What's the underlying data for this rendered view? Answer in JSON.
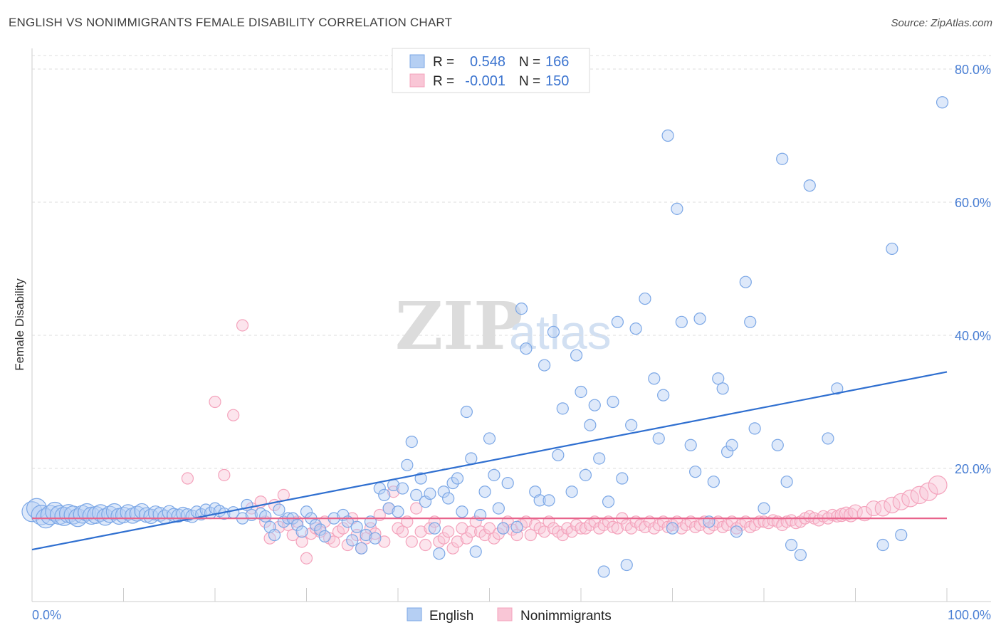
{
  "chart_data": {
    "type": "scatter",
    "title": "ENGLISH VS NONIMMIGRANTS FEMALE DISABILITY CORRELATION CHART",
    "source": "Source: ZipAtlas.com",
    "ylabel": "Female Disability",
    "xlim": [
      0,
      100
    ],
    "ylim": [
      0,
      80
    ],
    "x_tick_labels": [
      "0.0%",
      "100.0%"
    ],
    "y_ticks": [
      20,
      40,
      60,
      80
    ],
    "y_tick_labels": [
      "20.0%",
      "40.0%",
      "60.0%",
      "80.0%"
    ],
    "grid": "horizontal dashed",
    "watermark": {
      "zip": "ZIP",
      "atlas": "atlas"
    },
    "legend_top": {
      "r_label": "R =",
      "n_label": "N =",
      "entries": [
        {
          "series": "English",
          "r": "0.548",
          "n": "166"
        },
        {
          "series": "Nonimmigrants",
          "r": "-0.001",
          "n": "150"
        }
      ]
    },
    "series": [
      {
        "name": "English",
        "color": "#7ba7e6",
        "trend_color": "#2f6fd0",
        "trendline": {
          "x": [
            0,
            100
          ],
          "y": [
            7.8,
            34.5
          ]
        },
        "points": [
          [
            0,
            13.5
          ],
          [
            0.5,
            14
          ],
          [
            1,
            13
          ],
          [
            1.5,
            12.5
          ],
          [
            2,
            13
          ],
          [
            2.5,
            13.5
          ],
          [
            3,
            13
          ],
          [
            3.5,
            12.8
          ],
          [
            4,
            13.2
          ],
          [
            4.5,
            13
          ],
          [
            5,
            12.6
          ],
          [
            5.5,
            13.1
          ],
          [
            6,
            13.4
          ],
          [
            6.5,
            12.9
          ],
          [
            7,
            13
          ],
          [
            7.5,
            13.3
          ],
          [
            8,
            12.7
          ],
          [
            8.5,
            13.1
          ],
          [
            9,
            13.5
          ],
          [
            9.5,
            12.8
          ],
          [
            10,
            13
          ],
          [
            10.5,
            13.4
          ],
          [
            11,
            12.9
          ],
          [
            11.5,
            13.2
          ],
          [
            12,
            13.6
          ],
          [
            12.5,
            13
          ],
          [
            13,
            12.8
          ],
          [
            13.5,
            13.3
          ],
          [
            14,
            13.1
          ],
          [
            14.5,
            12.7
          ],
          [
            15,
            13.4
          ],
          [
            15.5,
            13
          ],
          [
            16,
            12.9
          ],
          [
            16.5,
            13.2
          ],
          [
            17,
            13
          ],
          [
            17.5,
            12.8
          ],
          [
            18,
            13.5
          ],
          [
            18.5,
            13.1
          ],
          [
            19,
            13.8
          ],
          [
            19.5,
            13.3
          ],
          [
            20,
            14
          ],
          [
            20.5,
            13.6
          ],
          [
            21,
            13.2
          ],
          [
            22,
            13.4
          ],
          [
            23,
            12.5
          ],
          [
            23.5,
            14.5
          ],
          [
            24,
            13
          ],
          [
            25,
            13.2
          ],
          [
            25.5,
            12.8
          ],
          [
            26,
            11.2
          ],
          [
            26.5,
            10
          ],
          [
            27,
            13.8
          ],
          [
            27.5,
            12
          ],
          [
            28,
            12.5
          ],
          [
            28.5,
            12.5
          ],
          [
            29,
            11.5
          ],
          [
            29.5,
            10.5
          ],
          [
            30,
            13.5
          ],
          [
            30.5,
            12.5
          ],
          [
            31,
            11.5
          ],
          [
            31.5,
            10.8
          ],
          [
            32,
            9.8
          ],
          [
            33,
            12.5
          ],
          [
            34,
            13
          ],
          [
            34.5,
            12
          ],
          [
            35,
            9.2
          ],
          [
            35.5,
            11.2
          ],
          [
            36,
            8
          ],
          [
            36.5,
            10
          ],
          [
            37,
            12
          ],
          [
            37.5,
            9.5
          ],
          [
            38,
            17
          ],
          [
            38.5,
            16
          ],
          [
            39,
            14
          ],
          [
            39.5,
            17.5
          ],
          [
            40,
            13.5
          ],
          [
            40.5,
            17
          ],
          [
            41,
            20.5
          ],
          [
            41.5,
            24
          ],
          [
            42,
            16
          ],
          [
            42.5,
            18.5
          ],
          [
            43,
            15
          ],
          [
            43.5,
            16.2
          ],
          [
            44,
            11
          ],
          [
            44.5,
            7.2
          ],
          [
            45,
            16.5
          ],
          [
            45.5,
            15.5
          ],
          [
            46,
            17.8
          ],
          [
            46.5,
            18.5
          ],
          [
            47,
            13.5
          ],
          [
            47.5,
            28.5
          ],
          [
            48,
            21.5
          ],
          [
            48.5,
            7.5
          ],
          [
            49,
            13
          ],
          [
            49.5,
            16.5
          ],
          [
            50,
            24.5
          ],
          [
            50.5,
            19
          ],
          [
            51,
            14
          ],
          [
            51.5,
            11
          ],
          [
            52,
            17.8
          ],
          [
            53,
            11.2
          ],
          [
            53.5,
            44
          ],
          [
            54,
            38
          ],
          [
            55,
            16.5
          ],
          [
            55.5,
            15.2
          ],
          [
            56,
            35.5
          ],
          [
            56.5,
            15.2
          ],
          [
            57,
            40.5
          ],
          [
            57.5,
            22
          ],
          [
            58,
            29
          ],
          [
            59,
            16.5
          ],
          [
            59.5,
            37
          ],
          [
            60,
            31.5
          ],
          [
            60.5,
            19
          ],
          [
            61,
            26.5
          ],
          [
            61.5,
            29.5
          ],
          [
            62,
            21.5
          ],
          [
            62.5,
            4.5
          ],
          [
            63,
            15
          ],
          [
            63.5,
            30
          ],
          [
            64,
            42
          ],
          [
            64.5,
            18.5
          ],
          [
            65,
            5.5
          ],
          [
            65.5,
            26.5
          ],
          [
            66,
            41
          ],
          [
            67,
            45.5
          ],
          [
            68,
            33.5
          ],
          [
            68.5,
            24.5
          ],
          [
            69,
            31
          ],
          [
            69.5,
            70
          ],
          [
            70,
            11
          ],
          [
            70.5,
            59
          ],
          [
            71,
            42
          ],
          [
            72,
            23.5
          ],
          [
            72.5,
            19.5
          ],
          [
            73,
            42.5
          ],
          [
            74,
            12
          ],
          [
            74.5,
            18
          ],
          [
            75,
            33.5
          ],
          [
            75.5,
            32
          ],
          [
            76,
            22.5
          ],
          [
            76.5,
            23.5
          ],
          [
            77,
            10.5
          ],
          [
            78,
            48
          ],
          [
            78.5,
            42
          ],
          [
            79,
            26
          ],
          [
            80,
            14
          ],
          [
            81.5,
            23.5
          ],
          [
            82,
            66.5
          ],
          [
            82.5,
            18
          ],
          [
            83,
            8.5
          ],
          [
            84,
            7
          ],
          [
            85,
            62.5
          ],
          [
            87,
            24.5
          ],
          [
            88,
            32
          ],
          [
            93,
            8.5
          ],
          [
            94,
            53
          ],
          [
            95,
            10
          ],
          [
            99.5,
            75
          ]
        ]
      },
      {
        "name": "Nonimmigrants",
        "color": "#f4a3bc",
        "trend_color": "#e8648c",
        "trendline": {
          "x": [
            0,
            100
          ],
          "y": [
            12.5,
            12.5
          ]
        },
        "points": [
          [
            17,
            18.5
          ],
          [
            20,
            30
          ],
          [
            21,
            19
          ],
          [
            22,
            28
          ],
          [
            23,
            41.5
          ],
          [
            24,
            14
          ],
          [
            25,
            15
          ],
          [
            25.5,
            12
          ],
          [
            26,
            9.5
          ],
          [
            26.5,
            14.5
          ],
          [
            27,
            11.2
          ],
          [
            27.5,
            16
          ],
          [
            28,
            11.5
          ],
          [
            28.5,
            10
          ],
          [
            29,
            12
          ],
          [
            29.5,
            9
          ],
          [
            30,
            6.5
          ],
          [
            30.5,
            10.2
          ],
          [
            31,
            11
          ],
          [
            31.5,
            10.5
          ],
          [
            32,
            12
          ],
          [
            32.5,
            9.5
          ],
          [
            33,
            9
          ],
          [
            33.5,
            10.5
          ],
          [
            34,
            11
          ],
          [
            34.5,
            8.5
          ],
          [
            35,
            12.5
          ],
          [
            35.5,
            10
          ],
          [
            36,
            8
          ],
          [
            36.5,
            9.5
          ],
          [
            37,
            11
          ],
          [
            37.5,
            10.2
          ],
          [
            38,
            13
          ],
          [
            38.5,
            9
          ],
          [
            39,
            14
          ],
          [
            39.5,
            16.5
          ],
          [
            40,
            11
          ],
          [
            40.5,
            10.5
          ],
          [
            41,
            12
          ],
          [
            41.5,
            9
          ],
          [
            42,
            14
          ],
          [
            42.5,
            10.5
          ],
          [
            43,
            8.5
          ],
          [
            43.5,
            11
          ],
          [
            44,
            12
          ],
          [
            44.5,
            9
          ],
          [
            45,
            9.5
          ],
          [
            45.5,
            10.5
          ],
          [
            46,
            8
          ],
          [
            46.5,
            9
          ],
          [
            47,
            11
          ],
          [
            47.5,
            9.5
          ],
          [
            48,
            10.5
          ],
          [
            48.5,
            12
          ],
          [
            49,
            10.5
          ],
          [
            49.5,
            10
          ],
          [
            50,
            11
          ],
          [
            50.5,
            9.5
          ],
          [
            51,
            10.2
          ],
          [
            51.5,
            11
          ],
          [
            52,
            12
          ],
          [
            52.5,
            10.8
          ],
          [
            53,
            10
          ],
          [
            53.5,
            11.5
          ],
          [
            54,
            12
          ],
          [
            54.5,
            10
          ],
          [
            55,
            11.5
          ],
          [
            55.5,
            11
          ],
          [
            56,
            10.5
          ],
          [
            56.5,
            12
          ],
          [
            57,
            11
          ],
          [
            57.5,
            10.5
          ],
          [
            58,
            10
          ],
          [
            58.5,
            11
          ],
          [
            59,
            10.5
          ],
          [
            59.5,
            11.5
          ],
          [
            60,
            11
          ],
          [
            60.5,
            11
          ],
          [
            61,
            11.5
          ],
          [
            61.5,
            12
          ],
          [
            62,
            11
          ],
          [
            62.5,
            11.5
          ],
          [
            63,
            12
          ],
          [
            63.5,
            11.2
          ],
          [
            64,
            11
          ],
          [
            64.5,
            12.5
          ],
          [
            65,
            11.5
          ],
          [
            65.5,
            11
          ],
          [
            66,
            12
          ],
          [
            66.5,
            11.5
          ],
          [
            67,
            11.2
          ],
          [
            67.5,
            12
          ],
          [
            68,
            11
          ],
          [
            68.5,
            11.5
          ],
          [
            69,
            12
          ],
          [
            69.5,
            11.2
          ],
          [
            70,
            11.5
          ],
          [
            70.5,
            12
          ],
          [
            71,
            11
          ],
          [
            71.5,
            11.5
          ],
          [
            72,
            12
          ],
          [
            72.5,
            11.2
          ],
          [
            73,
            11.5
          ],
          [
            73.5,
            12
          ],
          [
            74,
            11
          ],
          [
            74.5,
            11.5
          ],
          [
            75,
            12
          ],
          [
            75.5,
            11.2
          ],
          [
            76,
            11.5
          ],
          [
            76.5,
            12
          ],
          [
            77,
            11
          ],
          [
            77.5,
            11.5
          ],
          [
            78,
            12
          ],
          [
            78.5,
            11.2
          ],
          [
            79,
            11.5
          ],
          [
            79.5,
            12
          ],
          [
            80,
            12
          ],
          [
            80.5,
            11.8
          ],
          [
            81,
            12.2
          ],
          [
            81.5,
            12
          ],
          [
            82,
            11.5
          ],
          [
            82.5,
            12
          ],
          [
            83,
            12.2
          ],
          [
            83.5,
            11.8
          ],
          [
            84,
            12
          ],
          [
            84.5,
            12.5
          ],
          [
            85,
            12.8
          ],
          [
            85.5,
            12.5
          ],
          [
            86,
            12.2
          ],
          [
            86.5,
            12.8
          ],
          [
            87,
            12.5
          ],
          [
            87.5,
            13
          ],
          [
            88,
            12.8
          ],
          [
            88.5,
            13
          ],
          [
            89,
            13.2
          ],
          [
            89.5,
            13
          ],
          [
            90,
            13.5
          ],
          [
            91,
            13.2
          ],
          [
            92,
            14
          ],
          [
            93,
            14
          ],
          [
            94,
            14.5
          ],
          [
            95,
            15
          ],
          [
            96,
            15.5
          ],
          [
            97,
            16
          ],
          [
            98,
            16.5
          ],
          [
            99,
            17.5
          ]
        ]
      }
    ],
    "bottom_legend": [
      "English",
      "Nonimmigrants"
    ]
  }
}
